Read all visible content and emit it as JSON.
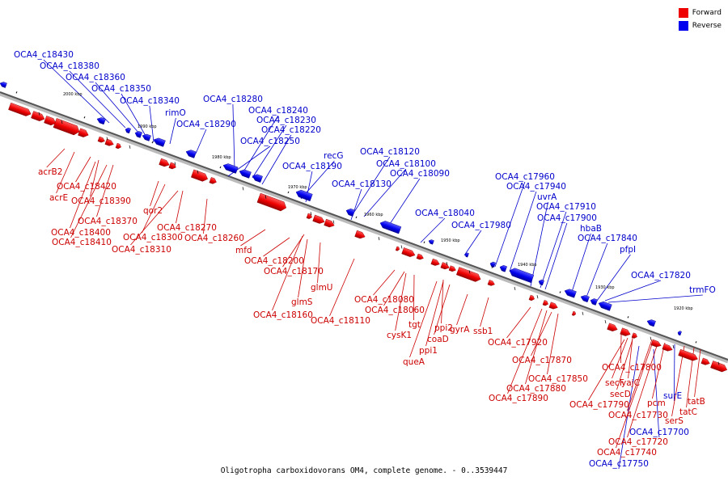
{
  "legend": {
    "forward_label": "Forward",
    "reverse_label": "Reverse",
    "forward_color": "#ee0000",
    "reverse_color": "#0000ee"
  },
  "caption": "Oligotropha carboxidovorans OM4, complete genome. - 0..3539447",
  "scale_labels": [
    "2000 kbp",
    "1990 kbp",
    "1980 kbp",
    "1970 kbp",
    "1960 kbp",
    "1950 kbp",
    "1940 kbp",
    "1930 kbp",
    "1920 kbp"
  ],
  "labels_reverse": [
    "OCA4_c18430",
    "OCA4_c18380",
    "OCA4_c18360",
    "OCA4_c18350",
    "OCA4_c18340",
    "rimO",
    "OCA4_c18290",
    "OCA4_c18280",
    "OCA4_c18240",
    "OCA4_c18230",
    "OCA4_c18220",
    "OCA4_c18250",
    "recG",
    "OCA4_c18190",
    "OCA4_c18120",
    "OCA4_c18100",
    "OCA4_c18090",
    "OCA4_c18130",
    "OCA4_c18040",
    "OCA4_c17980",
    "OCA4_c17960",
    "OCA4_c17940",
    "uvrA",
    "OCA4_c17910",
    "OCA4_c17900",
    "hbaB",
    "OCA4_c17840",
    "pfpI",
    "OCA4_c17820",
    "trmFO",
    "surE",
    "OCA4_c17700",
    "OCA4_c17750"
  ],
  "labels_forward": [
    "acrB2",
    "acrE",
    "OCA4_c18420",
    "OCA4_c18390",
    "OCA4_c18370",
    "OCA4_c18400",
    "OCA4_c18410",
    "qor2",
    "OCA4_c18270",
    "OCA4_c18300",
    "OCA4_c18260",
    "OCA4_c18310",
    "mfd",
    "OCA4_c18200",
    "OCA4_c18170",
    "glmU",
    "glmS",
    "OCA4_c18160",
    "OCA4_c18110",
    "OCA4_c18080",
    "OCA4_c18060",
    "cysK1",
    "tgt",
    "ppi2",
    "coaD",
    "ppi1",
    "queA",
    "gyrA",
    "ssb1",
    "OCA4_c17920",
    "OCA4_c17870",
    "OCA4_c17850",
    "OCA4_c17880",
    "OCA4_c17890",
    "OCA4_c17800",
    "secF",
    "yajC",
    "secD",
    "OCA4_c17790",
    "pcm",
    "OCA4_c17730",
    "tatB",
    "tatC",
    "serS",
    "OCA4_c17720",
    "OCA4_c17740"
  ]
}
